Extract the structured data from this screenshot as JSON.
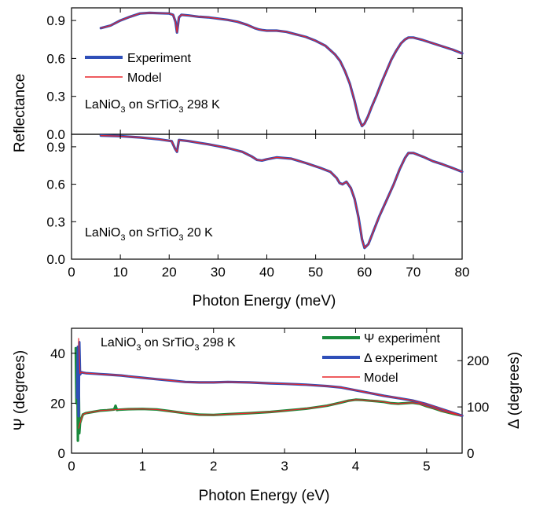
{
  "chart_data": [
    {
      "type": "line",
      "panel": "top",
      "annotation": {
        "prefix": "LaNiO",
        "sub1": "3",
        "mid": " on SrTiO",
        "sub2": "3",
        "suffix": " 298 K"
      },
      "ylabel": "Reflectance",
      "xlim": [
        0,
        80
      ],
      "ylim": [
        0,
        1.0
      ],
      "yticks": [
        "0.0",
        "0.3",
        "0.6",
        "0.9"
      ],
      "ytick_values": [
        0,
        0.3,
        0.6,
        0.9
      ],
      "legend": [
        {
          "name": "Experiment",
          "color": "#2f4fb8"
        },
        {
          "name": "Model",
          "color": "#e8262a"
        }
      ],
      "legend_placement": "left",
      "series": [
        {
          "name": "Experiment",
          "color": "#2f4fb8",
          "x": [
            6,
            8,
            10,
            12,
            14,
            16,
            18,
            20,
            20.8,
            21.3,
            21.6,
            22,
            22.5,
            24,
            26,
            28,
            30,
            32,
            34,
            36,
            37.5,
            38.3,
            39,
            40,
            42,
            44,
            46,
            48,
            50,
            52,
            54,
            55,
            56,
            57,
            58,
            58.8,
            59.5,
            60,
            60.7,
            61.5,
            62.5,
            63.5,
            64.5,
            65.5,
            66.5,
            67.5,
            68.3,
            69,
            70,
            71,
            72,
            74,
            76,
            78,
            80
          ],
          "y": [
            0.84,
            0.86,
            0.9,
            0.93,
            0.955,
            0.96,
            0.958,
            0.955,
            0.945,
            0.89,
            0.805,
            0.925,
            0.945,
            0.94,
            0.93,
            0.925,
            0.915,
            0.905,
            0.89,
            0.865,
            0.84,
            0.83,
            0.825,
            0.82,
            0.82,
            0.81,
            0.79,
            0.77,
            0.74,
            0.7,
            0.63,
            0.58,
            0.5,
            0.4,
            0.26,
            0.13,
            0.065,
            0.085,
            0.14,
            0.22,
            0.31,
            0.41,
            0.5,
            0.59,
            0.66,
            0.72,
            0.75,
            0.765,
            0.765,
            0.755,
            0.745,
            0.72,
            0.695,
            0.67,
            0.64
          ]
        },
        {
          "name": "Model",
          "color": "#e8262a",
          "x": [
            6,
            8,
            10,
            12,
            14,
            16,
            18,
            20,
            20.8,
            21.3,
            21.6,
            22,
            22.5,
            24,
            26,
            28,
            30,
            32,
            34,
            36,
            37.5,
            38.3,
            39,
            40,
            42,
            44,
            46,
            48,
            50,
            52,
            54,
            55,
            56,
            57,
            58,
            58.8,
            59.5,
            60,
            60.7,
            61.5,
            62.5,
            63.5,
            64.5,
            65.5,
            66.5,
            67.5,
            68.3,
            69,
            70,
            71,
            72,
            74,
            76,
            78,
            80
          ],
          "y": [
            0.84,
            0.86,
            0.9,
            0.93,
            0.955,
            0.96,
            0.958,
            0.955,
            0.945,
            0.89,
            0.805,
            0.925,
            0.945,
            0.94,
            0.93,
            0.925,
            0.915,
            0.905,
            0.89,
            0.865,
            0.84,
            0.83,
            0.825,
            0.82,
            0.82,
            0.81,
            0.79,
            0.77,
            0.74,
            0.7,
            0.63,
            0.58,
            0.5,
            0.4,
            0.26,
            0.13,
            0.065,
            0.085,
            0.14,
            0.22,
            0.31,
            0.41,
            0.5,
            0.59,
            0.66,
            0.72,
            0.75,
            0.765,
            0.765,
            0.755,
            0.745,
            0.72,
            0.695,
            0.67,
            0.64
          ]
        }
      ]
    },
    {
      "type": "line",
      "panel": "middle",
      "annotation": {
        "prefix": "LaNiO",
        "sub1": "3",
        "mid": " on SrTiO",
        "sub2": "3",
        "suffix": " 20 K"
      },
      "xlabel": "Photon Energy (meV)",
      "xlim": [
        0,
        80
      ],
      "ylim": [
        0,
        1.0
      ],
      "xticks": [
        "0",
        "10",
        "20",
        "30",
        "40",
        "50",
        "60",
        "70",
        "80"
      ],
      "xtick_values": [
        0,
        10,
        20,
        30,
        40,
        50,
        60,
        70,
        80
      ],
      "yticks": [
        "0.0",
        "0.3",
        "0.6",
        "0.9"
      ],
      "ytick_values": [
        0,
        0.3,
        0.6,
        0.9
      ],
      "series": [
        {
          "name": "Experiment",
          "color": "#2f4fb8",
          "x": [
            6,
            10,
            14,
            18,
            20.5,
            21.2,
            21.6,
            22,
            24,
            28,
            32,
            35,
            37,
            38,
            39,
            40,
            42,
            45,
            48,
            51,
            53,
            54.3,
            54.9,
            55.5,
            56.3,
            57.2,
            58,
            58.8,
            59.5,
            60,
            60.8,
            61.8,
            63,
            64.5,
            66,
            67.2,
            68.3,
            69,
            70,
            72,
            74,
            76,
            78,
            80
          ],
          "y": [
            0.99,
            0.985,
            0.975,
            0.96,
            0.945,
            0.885,
            0.86,
            0.955,
            0.945,
            0.92,
            0.89,
            0.86,
            0.82,
            0.795,
            0.79,
            0.8,
            0.815,
            0.805,
            0.77,
            0.73,
            0.7,
            0.65,
            0.61,
            0.6,
            0.62,
            0.57,
            0.48,
            0.33,
            0.16,
            0.09,
            0.12,
            0.22,
            0.34,
            0.47,
            0.6,
            0.72,
            0.81,
            0.85,
            0.85,
            0.82,
            0.785,
            0.76,
            0.73,
            0.7
          ]
        },
        {
          "name": "Model",
          "color": "#e8262a",
          "x": [
            6,
            10,
            14,
            18,
            20.5,
            21.2,
            21.6,
            22,
            24,
            28,
            32,
            35,
            37,
            38,
            39,
            40,
            42,
            45,
            48,
            51,
            53,
            54.3,
            54.9,
            55.5,
            56.3,
            57.2,
            58,
            58.8,
            59.5,
            60,
            60.8,
            61.8,
            63,
            64.5,
            66,
            67.2,
            68.3,
            69,
            70,
            72,
            74,
            76,
            78,
            80
          ],
          "y": [
            0.99,
            0.985,
            0.975,
            0.96,
            0.945,
            0.885,
            0.86,
            0.955,
            0.945,
            0.92,
            0.89,
            0.86,
            0.82,
            0.795,
            0.79,
            0.8,
            0.815,
            0.805,
            0.77,
            0.73,
            0.7,
            0.65,
            0.61,
            0.6,
            0.62,
            0.57,
            0.48,
            0.33,
            0.16,
            0.09,
            0.12,
            0.22,
            0.34,
            0.47,
            0.6,
            0.72,
            0.81,
            0.85,
            0.85,
            0.82,
            0.785,
            0.76,
            0.73,
            0.7
          ]
        }
      ]
    },
    {
      "type": "line",
      "panel": "bottom",
      "annotation": {
        "prefix": "LaNiO",
        "sub1": "3",
        "mid": " on SrTiO",
        "sub2": "3",
        "suffix": " 298 K"
      },
      "xlabel": "Photon Energy (eV)",
      "ylabel": "Ψ (degrees)",
      "y2label": "Δ (degrees)",
      "xlim": [
        0,
        5.5
      ],
      "ylim": [
        0,
        50
      ],
      "y2lim": [
        0,
        270
      ],
      "xticks": [
        "0",
        "1",
        "2",
        "3",
        "4",
        "5"
      ],
      "xtick_values": [
        0,
        1,
        2,
        3,
        4,
        5
      ],
      "yticks": [
        "0",
        "20",
        "40"
      ],
      "ytick_values": [
        0,
        20,
        40
      ],
      "y2ticks": [
        "0",
        "100",
        "200"
      ],
      "y2tick_values": [
        0,
        100,
        200
      ],
      "legend": [
        {
          "name": "Ψ experiment",
          "color": "#1a8a3c"
        },
        {
          "name": "Δ experiment",
          "color": "#2f4fb8"
        },
        {
          "name": "Model",
          "color": "#e8262a"
        }
      ],
      "legend_placement": "top-right",
      "series": [
        {
          "name": "Ψ experiment",
          "axis": "left",
          "color": "#1a8a3c",
          "x": [
            0.06,
            0.07,
            0.08,
            0.09,
            0.1,
            0.11,
            0.12,
            0.14,
            0.16,
            0.2,
            0.3,
            0.4,
            0.5,
            0.6,
            0.62,
            0.64,
            0.66,
            0.8,
            1.0,
            1.2,
            1.4,
            1.6,
            1.8,
            2.0,
            2.2,
            2.5,
            2.8,
            3.0,
            3.3,
            3.6,
            3.8,
            3.9,
            4.0,
            4.1,
            4.2,
            4.3,
            4.4,
            4.5,
            4.6,
            4.7,
            4.8,
            4.9,
            5.0,
            5.1,
            5.2,
            5.3,
            5.4,
            5.5
          ],
          "y": [
            42,
            20,
            40,
            5,
            35,
            8,
            12,
            14,
            15.5,
            16,
            16.5,
            17,
            17.2,
            17.5,
            19,
            17.3,
            17.4,
            17.6,
            17.7,
            17.5,
            16.8,
            16,
            15.4,
            15.3,
            15.6,
            16,
            16.5,
            17,
            17.8,
            19,
            20.3,
            21,
            21.4,
            21.3,
            21,
            20.8,
            20.5,
            20,
            19.8,
            20,
            20.2,
            19.8,
            18.8,
            18,
            17,
            16.3,
            15.6,
            15
          ]
        },
        {
          "name": "Δ experiment",
          "axis": "right",
          "color": "#2f4fb8",
          "x": [
            0.08,
            0.09,
            0.1,
            0.11,
            0.12,
            0.14,
            0.16,
            0.2,
            0.3,
            0.4,
            0.5,
            0.6,
            0.7,
            0.8,
            1.0,
            1.2,
            1.4,
            1.6,
            1.8,
            2.0,
            2.2,
            2.5,
            2.8,
            3.0,
            3.3,
            3.6,
            3.8,
            4.0,
            4.2,
            4.4,
            4.6,
            4.8,
            5.0,
            5.2,
            5.4,
            5.5
          ],
          "y": [
            120,
            230,
            80,
            240,
            170,
            175,
            174,
            173,
            172,
            171,
            170,
            169,
            168,
            166,
            163,
            160,
            157,
            154,
            153,
            153,
            154,
            153,
            151,
            150,
            148,
            145,
            142,
            136,
            130,
            124,
            119,
            114,
            106,
            96,
            86,
            81
          ]
        },
        {
          "name": "Model",
          "axis": "left",
          "color": "#e8262a",
          "x": [
            0.1,
            0.12,
            0.14,
            0.16,
            0.2,
            0.3,
            0.4,
            0.5,
            0.6,
            0.8,
            1.0,
            1.2,
            1.4,
            1.6,
            1.8,
            2.0,
            2.2,
            2.5,
            2.8,
            3.0,
            3.3,
            3.6,
            3.8,
            3.9,
            4.0,
            4.1,
            4.2,
            4.3,
            4.4,
            4.5,
            4.6,
            4.7,
            4.8,
            4.9,
            5.0,
            5.1,
            5.2,
            5.3,
            5.4,
            5.5
          ],
          "y": [
            10,
            12,
            14,
            15.5,
            16,
            16.5,
            17,
            17.2,
            17.4,
            17.6,
            17.7,
            17.5,
            16.8,
            16,
            15.4,
            15.3,
            15.6,
            16,
            16.5,
            17,
            17.8,
            19,
            20.3,
            21,
            21.4,
            21.3,
            21,
            20.8,
            20.5,
            20,
            19.8,
            20,
            20.2,
            19.8,
            18.8,
            18,
            17,
            16.3,
            15.6,
            15
          ]
        },
        {
          "name": "Model",
          "axis": "right",
          "color": "#e8262a",
          "x": [
            0.1,
            0.12,
            0.14,
            0.16,
            0.2,
            0.3,
            0.4,
            0.5,
            0.6,
            0.7,
            0.8,
            1.0,
            1.2,
            1.4,
            1.6,
            1.8,
            2.0,
            2.2,
            2.5,
            2.8,
            3.0,
            3.3,
            3.6,
            3.8,
            4.0,
            4.2,
            4.4,
            4.6,
            4.8,
            5.0,
            5.2,
            5.4,
            5.5
          ],
          "y": [
            248,
            172,
            175,
            174,
            173,
            172,
            171,
            170,
            169,
            168,
            166,
            163,
            160,
            157,
            154,
            153,
            153,
            154,
            153,
            151,
            150,
            148,
            145,
            142,
            136,
            130,
            124,
            119,
            114,
            106,
            96,
            86,
            81
          ]
        }
      ]
    }
  ]
}
